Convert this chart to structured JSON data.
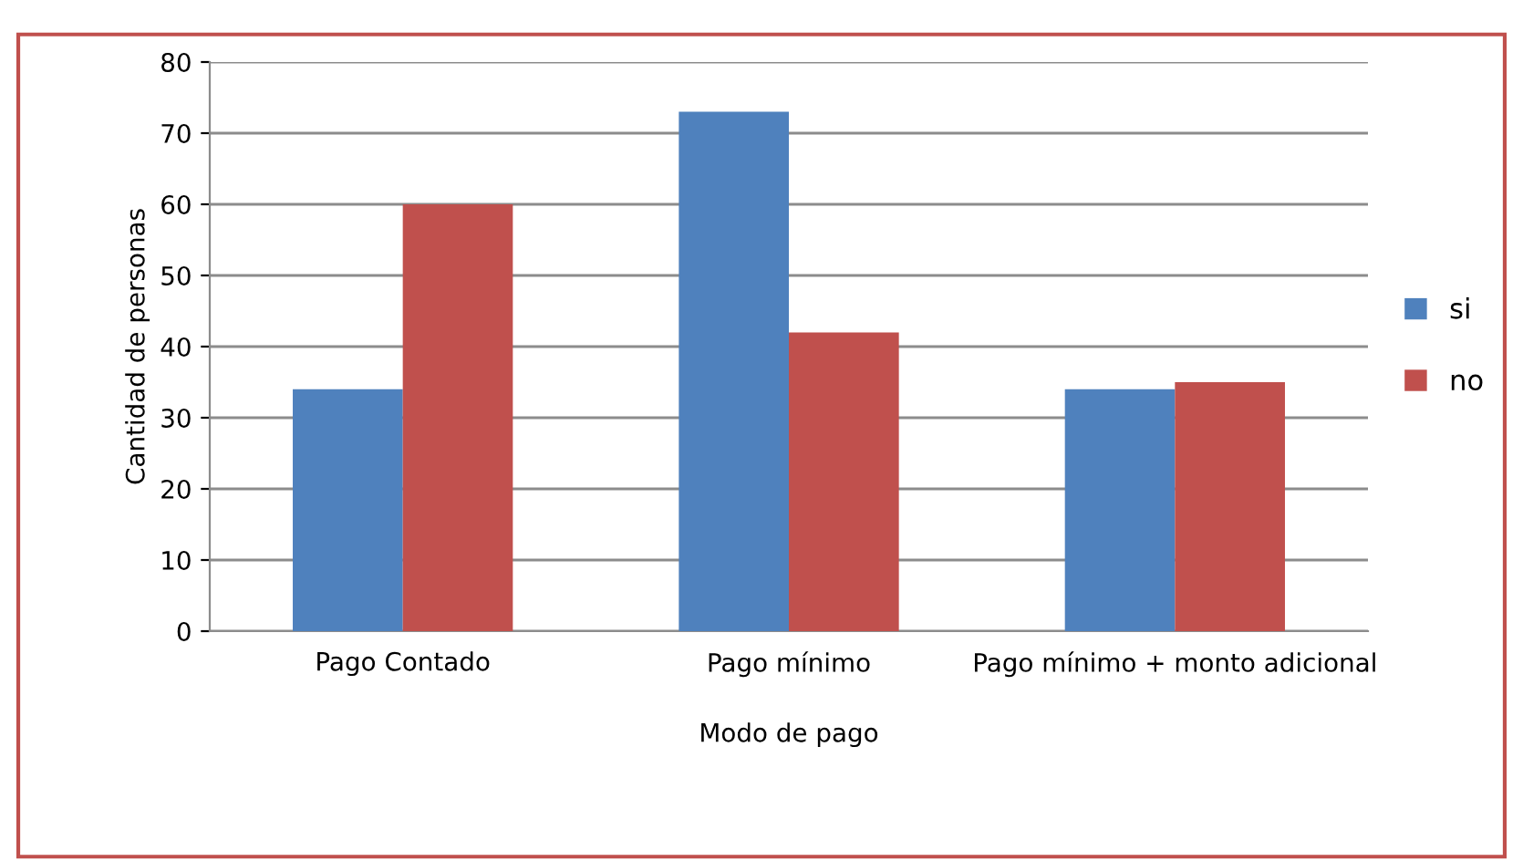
{
  "chart_data": {
    "type": "bar",
    "categories": [
      "Pago Contado",
      "Pago mínimo",
      "Pago mínimo + monto adicional"
    ],
    "series": [
      {
        "name": "si",
        "color": "#4f81bd",
        "values": [
          34,
          73,
          34
        ]
      },
      {
        "name": "no",
        "color": "#c0504d",
        "values": [
          60,
          42,
          35
        ]
      }
    ],
    "xlabel": "Modo de pago",
    "ylabel": "Cantidad de personas",
    "ylim": [
      0,
      80
    ],
    "yticks": [
      0,
      10,
      20,
      30,
      40,
      50,
      60,
      70,
      80
    ],
    "grid": "y",
    "legend": "right"
  }
}
